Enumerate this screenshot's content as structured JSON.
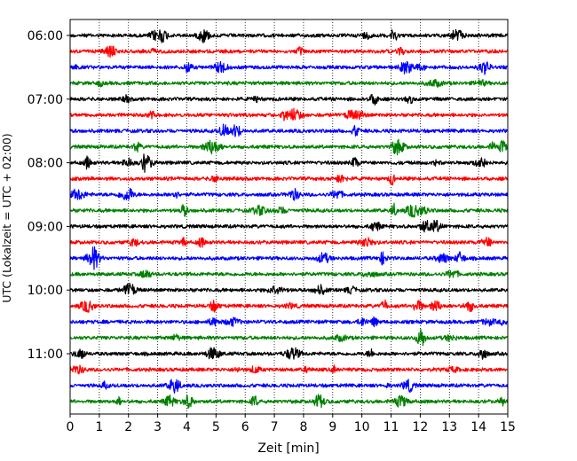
{
  "chart_data": {
    "type": "line",
    "xlabel": "Zeit  [min]",
    "ylabel": "UTC (Lokalzeit = UTC + 02:00)",
    "xlim": [
      0,
      15
    ],
    "x_ticks": [
      "0",
      "1",
      "2",
      "3",
      "4",
      "5",
      "6",
      "7",
      "8",
      "9",
      "10",
      "11",
      "12",
      "13",
      "14",
      "15"
    ],
    "y_tick_labels": [
      "06:00",
      "07:00",
      "08:00",
      "09:00",
      "10:00",
      "11:00"
    ],
    "y_tick_rows": [
      0,
      4,
      8,
      12,
      16,
      20
    ],
    "grid": "vertical-dotted",
    "row_count": 24,
    "row_colors": [
      "#000000",
      "#ff0000",
      "#0000ff",
      "#008000"
    ]
  }
}
